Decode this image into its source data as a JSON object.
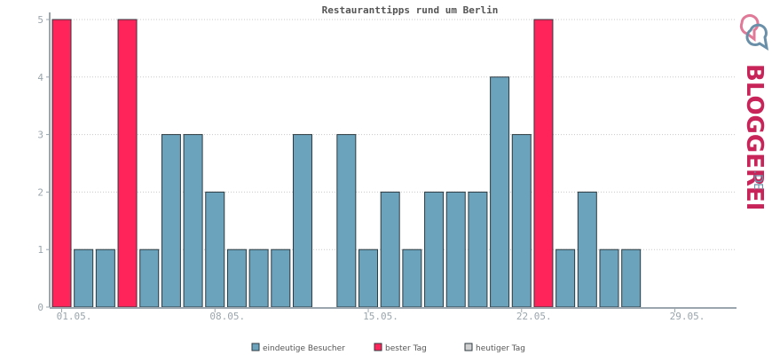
{
  "chart_data": {
    "type": "bar",
    "title": "Restauranttipps rund um Berlin",
    "ylim": [
      0,
      5
    ],
    "yticks": [
      "0",
      "1",
      "2",
      "3",
      "4",
      "5"
    ],
    "grid": true,
    "days": [
      1,
      2,
      3,
      4,
      5,
      6,
      7,
      8,
      9,
      10,
      11,
      12,
      13,
      14,
      15,
      16,
      17,
      18,
      19,
      20,
      21,
      22,
      23,
      24,
      25,
      26,
      27,
      28,
      29,
      30,
      31
    ],
    "values": [
      5,
      1,
      1,
      5,
      1,
      3,
      3,
      2,
      1,
      1,
      1,
      3,
      0,
      3,
      1,
      2,
      1,
      2,
      2,
      2,
      4,
      3,
      5,
      1,
      2,
      1,
      1,
      0,
      0,
      0,
      0
    ],
    "best_days": [
      1,
      4,
      23
    ],
    "xtick_labels": [
      {
        "day": 1,
        "label": "01.05."
      },
      {
        "day": 8,
        "label": "08.05."
      },
      {
        "day": 15,
        "label": "15.05."
      },
      {
        "day": 22,
        "label": "22.05."
      },
      {
        "day": 29,
        "label": "29.05."
      }
    ],
    "series": [
      {
        "name": "eindeutige Besucher",
        "color": "#6ba3bd"
      },
      {
        "name": "bester Tag",
        "color": "#ff2459"
      },
      {
        "name": "heutiger Tag",
        "color": "#d0d0d0"
      }
    ],
    "legend_position": "bottom-center"
  },
  "logo": {
    "text": "BLOGGEREI",
    "suffix": ".DE",
    "colors": [
      "#c8245a",
      "#6a8fa8"
    ]
  }
}
